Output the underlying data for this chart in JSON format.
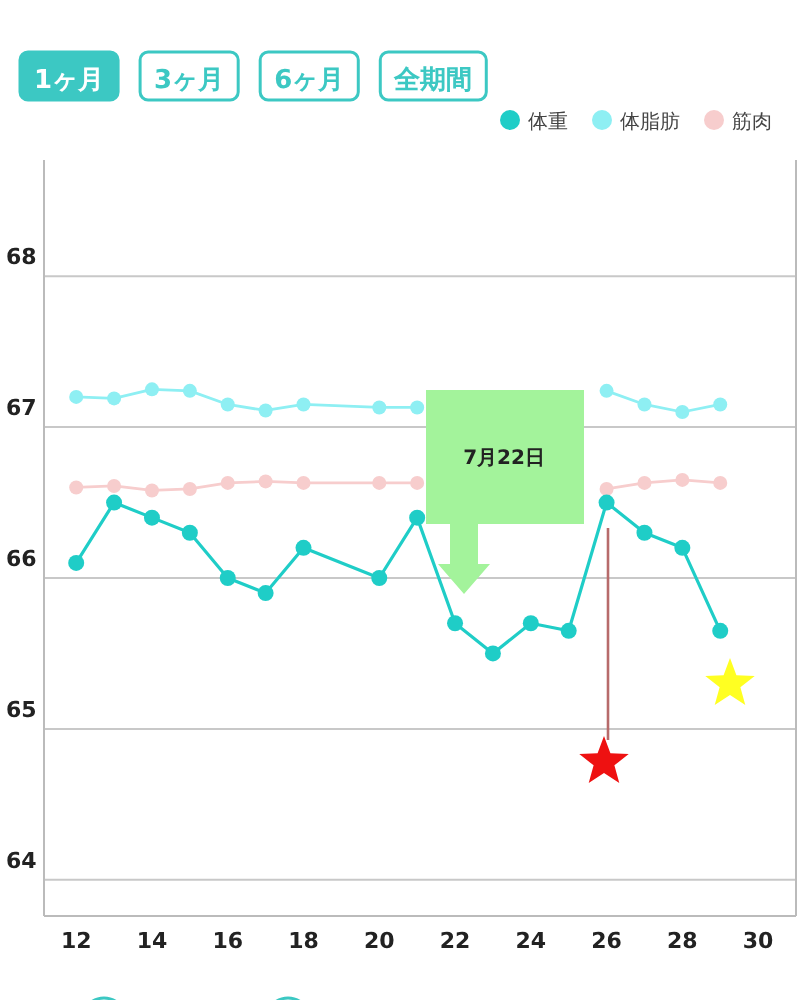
{
  "chart_data": {
    "type": "line",
    "annotations": [
      "1ヶ月",
      "3ヶ月",
      "6ヶ月",
      "全期間",
      "7月22日"
    ],
    "series": [
      {
        "name": "体重",
        "color": "#1fcdc7",
        "x": [
          12,
          13,
          14,
          15,
          16,
          17,
          18,
          20,
          21,
          22,
          23,
          24,
          25,
          26,
          27,
          28,
          29
        ],
        "values": [
          66.1,
          66.5,
          66.4,
          66.3,
          66.0,
          65.9,
          66.2,
          66.0,
          66.4,
          65.7,
          65.5,
          65.7,
          65.65,
          66.5,
          66.3,
          66.2,
          65.65
        ]
      },
      {
        "name": "体脂肪",
        "color": "#8eeff3",
        "x": [
          12,
          13,
          14,
          15,
          16,
          17,
          18,
          20,
          21,
          22,
          23,
          24,
          25,
          26,
          27,
          28,
          29
        ],
        "values": [
          67.2,
          67.19,
          67.25,
          67.24,
          67.15,
          67.11,
          67.15,
          67.13,
          67.13,
          null,
          null,
          null,
          null,
          67.24,
          67.15,
          67.1,
          67.15
        ]
      },
      {
        "name": "筋肉",
        "color": "#f7cdcd",
        "x": [
          12,
          13,
          14,
          15,
          16,
          17,
          18,
          20,
          21,
          22,
          23,
          24,
          25,
          26,
          27,
          28,
          29
        ],
        "values": [
          66.6,
          66.61,
          66.58,
          66.59,
          66.63,
          66.64,
          66.63,
          66.63,
          66.63,
          null,
          null,
          null,
          null,
          66.59,
          66.63,
          66.65,
          66.63
        ]
      }
    ],
    "xlim": [
      11.15,
      31
    ],
    "xticks": [
      12,
      14,
      16,
      18,
      20,
      22,
      24,
      26,
      28,
      30
    ],
    "ylim": [
      63.76,
      68.77
    ],
    "yticks": [
      64,
      65,
      66,
      67,
      68
    ],
    "grid": "y",
    "legend": "top right",
    "marker": "circle",
    "line_style": "solid"
  }
}
